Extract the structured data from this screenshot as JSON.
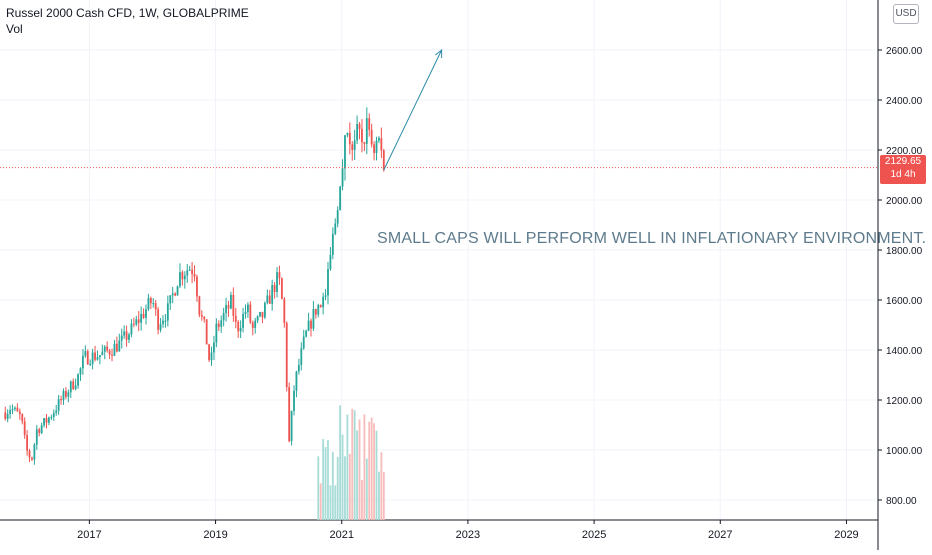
{
  "header": {
    "title": "Russel 2000 Cash CFD, 1W, GLOBALPRIME",
    "indicator": "Vol",
    "currency": "USD"
  },
  "price_tag": {
    "price": "2129.65",
    "countdown": "1d 4h"
  },
  "annotation": {
    "text": "SMALL CAPS WILL PERFORM WELL IN INFLATIONARY ENVIRONMENT."
  },
  "colors": {
    "up": "#26a69a",
    "down": "#ef5350",
    "vol_up": "#a8dcd7",
    "vol_down": "#f7bcbb",
    "grid": "#f0f3fa",
    "arrow": "#2e8ba8",
    "annotation": "#5d7b8c",
    "last_price_line": "#ef5350"
  },
  "chart_data": {
    "type": "candlestick",
    "title": "Russel 2000 Cash CFD, 1W, GLOBALPRIME",
    "y_axis": {
      "ticks": [
        800,
        1000,
        1200,
        1400,
        1600,
        1800,
        2000,
        2200,
        2400,
        2600
      ],
      "tick_labels": [
        "800.00",
        "1000.00",
        "1200.00",
        "1400.00",
        "1600.00",
        "1800.00",
        "2000.00",
        "2200.00",
        "2400.00",
        "2600.00"
      ],
      "range": [
        720,
        2800
      ]
    },
    "x_axis": {
      "ticks": [
        "2017",
        "2019",
        "2021",
        "2023",
        "2025",
        "2027",
        "2029"
      ],
      "range": [
        "2015-08",
        "2029-07"
      ]
    },
    "grid": true,
    "last_price": 2129.65,
    "price_path": [
      [
        "2015-09",
        1150
      ],
      [
        "2015-10",
        1170
      ],
      [
        "2015-12",
        1130
      ],
      [
        "2016-01",
        1000
      ],
      [
        "2016-02",
        960
      ],
      [
        "2016-03",
        1080
      ],
      [
        "2016-05",
        1120
      ],
      [
        "2016-06",
        1150
      ],
      [
        "2016-09",
        1240
      ],
      [
        "2016-11",
        1300
      ],
      [
        "2016-12",
        1370
      ],
      [
        "2017-03",
        1380
      ],
      [
        "2017-05",
        1400
      ],
      [
        "2017-07",
        1430
      ],
      [
        "2017-09",
        1480
      ],
      [
        "2017-11",
        1540
      ],
      [
        "2018-01",
        1600
      ],
      [
        "2018-02",
        1510
      ],
      [
        "2018-04",
        1560
      ],
      [
        "2018-06",
        1700
      ],
      [
        "2018-08",
        1730
      ],
      [
        "2018-09",
        1720
      ],
      [
        "2018-10",
        1550
      ],
      [
        "2018-11",
        1480
      ],
      [
        "2018-12",
        1330
      ],
      [
        "2019-01",
        1480
      ],
      [
        "2019-04",
        1590
      ],
      [
        "2019-05",
        1480
      ],
      [
        "2019-07",
        1570
      ],
      [
        "2019-08",
        1480
      ],
      [
        "2019-10",
        1540
      ],
      [
        "2019-12",
        1650
      ],
      [
        "2020-01",
        1690
      ],
      [
        "2020-02",
        1540
      ],
      [
        "2020-03",
        1030
      ],
      [
        "2020-04",
        1260
      ],
      [
        "2020-06",
        1450
      ],
      [
        "2020-08",
        1560
      ],
      [
        "2020-10",
        1620
      ],
      [
        "2020-11",
        1800
      ],
      [
        "2020-12",
        1950
      ],
      [
        "2021-01",
        2150
      ],
      [
        "2021-02",
        2280
      ],
      [
        "2021-03",
        2220
      ],
      [
        "2021-04",
        2260
      ],
      [
        "2021-05",
        2230
      ],
      [
        "2021-06",
        2310
      ],
      [
        "2021-07",
        2200
      ],
      [
        "2021-08",
        2250
      ],
      [
        "2021-09",
        2130
      ]
    ],
    "volume_shown": true,
    "projection_arrow": {
      "from": [
        "2021-09",
        2120
      ],
      "to": [
        "2022-08",
        2600
      ]
    }
  }
}
